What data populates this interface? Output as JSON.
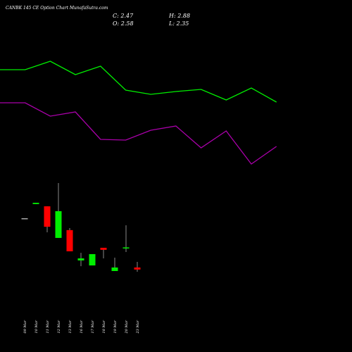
{
  "chart_data": [
    {
      "type": "candlestick",
      "title": "CANBK 145 CE Option  Chart MunafaSutra.com",
      "info": [
        "C: 2.47",
        "H: 2.88",
        "O: 2.58",
        "L: 2.35"
      ],
      "categories": [
        "09 Mar",
        "10 Mar",
        "11 Mar",
        "12 Mar",
        "13 Mar",
        "16 Mar",
        "17 Mar",
        "18 Mar",
        "19 Mar",
        "20 Mar",
        "23 Mar"
      ],
      "open": [
        5.23,
        5.99,
        5.87,
        4.17,
        4.59,
        2.96,
        2.69,
        3.64,
        2.39,
        3.62,
        2.58
      ],
      "high": [
        5.23,
        6.06,
        5.87,
        7.12,
        4.7,
        3.37,
        3.3,
        3.64,
        3.11,
        4.85,
        2.88
      ],
      "low": [
        5.23,
        5.99,
        4.47,
        4.17,
        3.45,
        2.65,
        2.69,
        3.07,
        2.39,
        3.41,
        2.35
      ],
      "close": [
        5.23,
        6.06,
        4.77,
        5.61,
        3.45,
        3.07,
        3.3,
        3.53,
        2.58,
        3.66,
        2.47
      ],
      "up_color": "#00ee00",
      "down_color": "#ff0000",
      "flat_color": "#aaaaaa",
      "ylim": [
        2.2,
        7.5
      ]
    },
    {
      "type": "line",
      "series": [
        {
          "color": "#00ee00",
          "values": [
            75.5,
            75.5,
            81.5,
            72,
            78,
            61,
            58,
            60,
            61.5,
            54,
            62.5,
            52.5
          ]
        },
        {
          "color": "#aa00aa",
          "values": [
            52,
            52,
            42.5,
            45.5,
            26,
            25.5,
            32.5,
            35.5,
            20,
            32,
            8.5,
            21
          ]
        }
      ],
      "ylim": [
        0,
        100
      ]
    }
  ]
}
